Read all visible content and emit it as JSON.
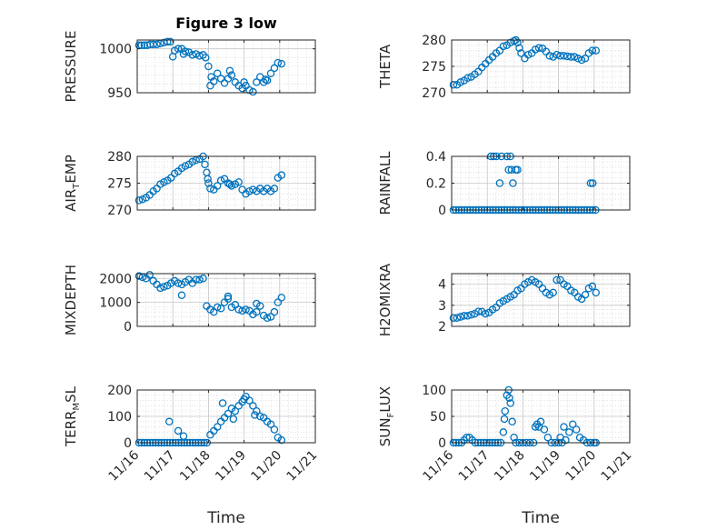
{
  "chart_data": [
    {
      "type": "scatter",
      "title": "Figure 3 low",
      "ylabel": "PRESSURE",
      "ylim": [
        950,
        1010
      ],
      "yticks": [
        950,
        1000
      ],
      "xlim_days": [
        0,
        5
      ],
      "xtick_labels": [
        "11/16",
        "11/17",
        "11/18",
        "11/19",
        "11/20",
        "11/21"
      ],
      "show_xtick_labels": false,
      "grid": true,
      "x": [
        0.05,
        0.12,
        0.2,
        0.28,
        0.36,
        0.45,
        0.55,
        0.65,
        0.75,
        0.85,
        0.93,
        1.05,
        1.15,
        1.25,
        1.35,
        1.45,
        1.55,
        1.65,
        1.75,
        1.85,
        1.92,
        2.0,
        2.08,
        2.15,
        2.25,
        2.35,
        2.45,
        2.55,
        2.65,
        2.75,
        2.85,
        2.95,
        3.05,
        3.15,
        3.25,
        3.35,
        3.45,
        3.55,
        3.65,
        3.75,
        3.85,
        3.95,
        4.05,
        1.0,
        1.3,
        2.05,
        2.6,
        3.0,
        3.6
      ],
      "y": [
        1004,
        1004,
        1004,
        1004,
        1005,
        1005,
        1005,
        1006,
        1007,
        1008,
        1008,
        998,
        1000,
        1000,
        997,
        996,
        993,
        994,
        992,
        993,
        990,
        980,
        968,
        963,
        972,
        966,
        961,
        966,
        970,
        962,
        958,
        955,
        958,
        953,
        951,
        962,
        968,
        962,
        964,
        972,
        978,
        984,
        983,
        991,
        994,
        958,
        975,
        962,
        965
      ],
      "color": "#0072BD"
    },
    {
      "type": "scatter",
      "title": "",
      "ylabel": "THETA",
      "ylim": [
        270,
        280
      ],
      "yticks": [
        270,
        275,
        280
      ],
      "xlim_days": [
        0,
        5
      ],
      "show_xtick_labels": false,
      "grid": true,
      "x": [
        0.05,
        0.15,
        0.25,
        0.35,
        0.45,
        0.55,
        0.65,
        0.75,
        0.85,
        0.95,
        1.05,
        1.15,
        1.25,
        1.35,
        1.45,
        1.55,
        1.65,
        1.75,
        1.8,
        1.85,
        1.9,
        1.95,
        2.05,
        2.15,
        2.25,
        2.35,
        2.45,
        2.55,
        2.65,
        2.75,
        2.85,
        2.95,
        3.05,
        3.15,
        3.25,
        3.35,
        3.45,
        3.55,
        3.65,
        3.75,
        3.85,
        3.95,
        4.05
      ],
      "y": [
        271.5,
        271.5,
        272,
        272.3,
        272.8,
        273,
        273.5,
        274,
        274.8,
        275.5,
        276.2,
        276.8,
        277.5,
        278,
        278.8,
        279,
        279.5,
        279.8,
        280,
        279.5,
        278.5,
        277.5,
        276.5,
        277.2,
        277.5,
        278.2,
        278.5,
        278.4,
        277.8,
        277,
        276.8,
        277.2,
        277,
        277,
        276.9,
        276.8,
        276.8,
        276.5,
        276.2,
        276.5,
        277.5,
        278,
        278
      ],
      "color": "#0072BD"
    },
    {
      "type": "scatter",
      "title": "",
      "ylabel_main": "AIR",
      "ylabel_sub": "T",
      "ylabel_rest": "EMP",
      "ylim": [
        270,
        280
      ],
      "yticks": [
        270,
        275,
        280
      ],
      "xlim_days": [
        0,
        5
      ],
      "show_xtick_labels": false,
      "grid": true,
      "x": [
        0.05,
        0.15,
        0.25,
        0.35,
        0.45,
        0.55,
        0.65,
        0.75,
        0.85,
        0.95,
        1.05,
        1.15,
        1.25,
        1.35,
        1.45,
        1.55,
        1.65,
        1.75,
        1.85,
        1.9,
        1.95,
        2.0,
        2.05,
        2.15,
        2.25,
        2.35,
        2.45,
        2.55,
        2.65,
        2.75,
        2.85,
        2.95,
        3.05,
        3.15,
        3.25,
        3.35,
        3.45,
        3.55,
        3.65,
        3.75,
        3.85,
        3.95,
        4.05,
        1.98,
        2.6
      ],
      "y": [
        271.8,
        272,
        272.3,
        272.8,
        273.5,
        274,
        274.8,
        275.2,
        275.5,
        276,
        276.8,
        277.2,
        277.8,
        278.2,
        278.5,
        279,
        279.3,
        279.5,
        280,
        278.5,
        277,
        275,
        274,
        273.8,
        274.5,
        275.5,
        275.8,
        275,
        274.5,
        274.8,
        275.2,
        273.8,
        273,
        273.5,
        273.8,
        273.5,
        274,
        273.5,
        274,
        273.5,
        274,
        276,
        276.5,
        275.8,
        274.8
      ],
      "color": "#0072BD"
    },
    {
      "type": "scatter",
      "title": "",
      "ylabel": "RAINFALL",
      "ylim": [
        0,
        0.4
      ],
      "yticks": [
        0,
        0.2,
        0.4
      ],
      "ytick_labels": [
        "0",
        "0.2",
        "0.4"
      ],
      "xlim_days": [
        0,
        5
      ],
      "show_xtick_labels": false,
      "grid": true,
      "x": [
        0.05,
        0.12,
        0.2,
        0.28,
        0.36,
        0.44,
        0.52,
        0.6,
        0.68,
        0.76,
        0.84,
        0.92,
        1.0,
        1.08,
        1.16,
        1.24,
        1.32,
        1.4,
        1.48,
        1.56,
        1.64,
        1.72,
        1.8,
        1.88,
        1.96,
        2.04,
        2.12,
        2.2,
        2.28,
        2.36,
        2.44,
        2.52,
        2.6,
        2.68,
        2.76,
        2.84,
        2.92,
        3.0,
        3.08,
        3.16,
        3.24,
        3.32,
        3.4,
        3.48,
        3.56,
        3.64,
        3.72,
        3.8,
        3.88,
        3.96,
        4.04,
        1.1,
        1.18,
        1.26,
        1.4,
        1.55,
        1.65,
        1.35,
        1.72,
        1.6,
        1.68,
        1.8,
        1.85,
        3.9,
        3.96
      ],
      "y": [
        0,
        0,
        0,
        0,
        0,
        0,
        0,
        0,
        0,
        0,
        0,
        0,
        0,
        0,
        0,
        0,
        0,
        0,
        0,
        0,
        0,
        0,
        0,
        0,
        0,
        0,
        0,
        0,
        0,
        0,
        0,
        0,
        0,
        0,
        0,
        0,
        0,
        0,
        0,
        0,
        0,
        0,
        0,
        0,
        0,
        0,
        0,
        0,
        0,
        0,
        0,
        0.4,
        0.4,
        0.4,
        0.4,
        0.4,
        0.4,
        0.2,
        0.2,
        0.3,
        0.3,
        0.3,
        0.3,
        0.2,
        0.2
      ],
      "color": "#0072BD"
    },
    {
      "type": "scatter",
      "title": "",
      "ylabel": "MIXDEPTH",
      "ylim": [
        0,
        2200
      ],
      "yticks": [
        0,
        1000,
        2000
      ],
      "xlim_days": [
        0,
        5
      ],
      "show_xtick_labels": false,
      "grid": true,
      "x": [
        0.05,
        0.15,
        0.25,
        0.35,
        0.45,
        0.55,
        0.65,
        0.75,
        0.85,
        0.95,
        1.05,
        1.15,
        1.25,
        1.35,
        1.45,
        1.55,
        1.65,
        1.75,
        1.85,
        1.95,
        2.05,
        2.15,
        2.25,
        2.35,
        2.45,
        2.55,
        2.65,
        2.75,
        2.85,
        2.95,
        3.05,
        3.15,
        3.25,
        3.35,
        3.45,
        3.55,
        3.65,
        3.75,
        3.85,
        3.95,
        4.05,
        1.25,
        2.55,
        3.35
      ],
      "y": [
        2100,
        2050,
        2000,
        2150,
        1900,
        1750,
        1600,
        1650,
        1700,
        1800,
        1900,
        1800,
        1750,
        1850,
        1950,
        1800,
        1950,
        1950,
        2000,
        850,
        700,
        600,
        800,
        750,
        1000,
        1150,
        800,
        900,
        700,
        650,
        700,
        650,
        500,
        600,
        850,
        450,
        350,
        400,
        600,
        1000,
        1200,
        1300,
        1250,
        950
      ],
      "color": "#0072BD"
    },
    {
      "type": "scatter",
      "title": "",
      "ylabel": "H2OMIXRA",
      "ylim": [
        2,
        4.5
      ],
      "yticks": [
        2,
        3,
        4
      ],
      "xlim_days": [
        0,
        5
      ],
      "show_xtick_labels": false,
      "grid": true,
      "x": [
        0.05,
        0.15,
        0.25,
        0.35,
        0.45,
        0.55,
        0.65,
        0.75,
        0.85,
        0.95,
        1.05,
        1.15,
        1.25,
        1.35,
        1.45,
        1.55,
        1.65,
        1.75,
        1.85,
        1.95,
        2.05,
        2.15,
        2.25,
        2.35,
        2.45,
        2.55,
        2.65,
        2.75,
        2.85,
        2.95,
        3.05,
        3.15,
        3.25,
        3.35,
        3.45,
        3.55,
        3.65,
        3.75,
        3.85,
        3.95,
        4.05
      ],
      "y": [
        2.4,
        2.4,
        2.45,
        2.5,
        2.5,
        2.55,
        2.6,
        2.7,
        2.7,
        2.6,
        2.65,
        2.8,
        2.9,
        3.1,
        3.2,
        3.3,
        3.4,
        3.5,
        3.7,
        3.8,
        4.0,
        4.1,
        4.2,
        4.1,
        4.0,
        3.8,
        3.6,
        3.5,
        3.6,
        4.2,
        4.2,
        4.0,
        3.9,
        3.7,
        3.6,
        3.4,
        3.3,
        3.5,
        3.8,
        3.9,
        3.6
      ],
      "color": "#0072BD"
    },
    {
      "type": "scatter",
      "title": "",
      "ylabel_main": "TERR",
      "ylabel_sub": "M",
      "ylabel_rest": "SL",
      "ylim": [
        0,
        200
      ],
      "yticks": [
        0,
        100,
        200
      ],
      "xlim_days": [
        0,
        5
      ],
      "xtick_labels": [
        "11/16",
        "11/17",
        "11/18",
        "11/19",
        "11/20",
        "11/21"
      ],
      "show_xtick_labels": true,
      "xlabel": "Time",
      "grid": true,
      "x": [
        0.05,
        0.12,
        0.2,
        0.28,
        0.36,
        0.44,
        0.52,
        0.6,
        0.68,
        0.76,
        0.84,
        0.92,
        1.0,
        1.08,
        1.16,
        1.24,
        1.32,
        1.4,
        1.48,
        1.56,
        1.64,
        1.72,
        1.8,
        1.88,
        1.96,
        0.9,
        1.15,
        1.3,
        2.05,
        2.15,
        2.25,
        2.35,
        2.45,
        2.55,
        2.65,
        2.75,
        2.85,
        2.95,
        3.05,
        3.15,
        3.25,
        3.35,
        3.45,
        3.55,
        3.65,
        3.75,
        3.85,
        3.95,
        4.05,
        2.4,
        2.7,
        3.0,
        3.3
      ],
      "y": [
        0,
        0,
        0,
        0,
        0,
        0,
        0,
        0,
        0,
        0,
        0,
        0,
        0,
        0,
        0,
        0,
        0,
        0,
        0,
        0,
        0,
        0,
        0,
        0,
        0,
        80,
        45,
        25,
        30,
        45,
        60,
        80,
        95,
        110,
        130,
        120,
        140,
        155,
        175,
        160,
        140,
        120,
        100,
        95,
        80,
        70,
        50,
        20,
        10,
        150,
        90,
        165,
        105
      ],
      "color": "#0072BD"
    },
    {
      "type": "scatter",
      "title": "",
      "ylabel_main": "SUN",
      "ylabel_sub": "F",
      "ylabel_rest": "LUX",
      "ylim": [
        0,
        100
      ],
      "yticks": [
        0,
        50,
        100
      ],
      "xlim_days": [
        0,
        5
      ],
      "xtick_labels": [
        "11/16",
        "11/17",
        "11/18",
        "11/19",
        "11/20",
        "11/21"
      ],
      "show_xtick_labels": true,
      "xlabel": "Time",
      "grid": true,
      "x": [
        0.05,
        0.12,
        0.2,
        0.28,
        0.35,
        0.42,
        0.5,
        0.58,
        0.66,
        0.74,
        0.82,
        0.9,
        0.98,
        1.06,
        1.14,
        1.22,
        1.3,
        1.38,
        1.45,
        1.5,
        1.55,
        1.6,
        1.65,
        1.7,
        1.75,
        1.8,
        1.9,
        2.0,
        2.1,
        2.2,
        2.3,
        2.4,
        2.5,
        2.6,
        2.7,
        2.8,
        2.9,
        3.0,
        3.1,
        3.2,
        3.3,
        3.4,
        3.5,
        3.6,
        3.7,
        3.8,
        3.9,
        4.0,
        4.05,
        1.48,
        1.62,
        2.35,
        2.45,
        3.05,
        3.15
      ],
      "y": [
        0,
        0,
        0,
        0,
        5,
        10,
        10,
        5,
        0,
        0,
        0,
        0,
        0,
        0,
        0,
        0,
        0,
        0,
        20,
        60,
        90,
        100,
        75,
        40,
        10,
        0,
        0,
        0,
        0,
        0,
        0,
        35,
        40,
        25,
        10,
        0,
        0,
        0,
        0,
        5,
        20,
        35,
        25,
        10,
        5,
        0,
        0,
        0,
        0,
        45,
        85,
        30,
        30,
        10,
        30
      ],
      "color": "#0072BD"
    }
  ]
}
